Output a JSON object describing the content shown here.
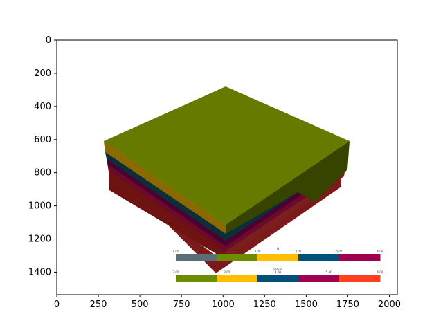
{
  "chart_data": {
    "type": "image",
    "x_ticks": [
      "0",
      "250",
      "500",
      "750",
      "1000",
      "1250",
      "1500",
      "1750",
      "2000"
    ],
    "y_ticks": [
      "0",
      "200",
      "400",
      "600",
      "800",
      "1000",
      "1200",
      "1400"
    ],
    "xlim": [
      0,
      2048
    ],
    "ylim": [
      1536,
      0
    ],
    "rendered_image": {
      "subject": "3D geological block model",
      "top_color": "#667a00",
      "strata_colors": [
        "#667a00",
        "#8a6a00",
        "#0b2f3a",
        "#4a0030",
        "#6b0a2a",
        "#7a1a1a"
      ],
      "colorbars": [
        {
          "title": "id",
          "tick_labels": [
            "1.00",
            "2.00",
            "3.00",
            "4.00",
            "5.00",
            "6.00"
          ],
          "colors": [
            "#5a6e78",
            "#6e8c00",
            "#ffbe00",
            "#00507a",
            "#a00050"
          ]
        },
        {
          "title": "values",
          "tick_labels": [
            "2.00",
            "3.00",
            "4.00",
            "5.00",
            "6.00"
          ],
          "colors": [
            "#6e8c00",
            "#ffbe00",
            "#00507a",
            "#a00050",
            "#ff4020"
          ]
        }
      ]
    }
  }
}
